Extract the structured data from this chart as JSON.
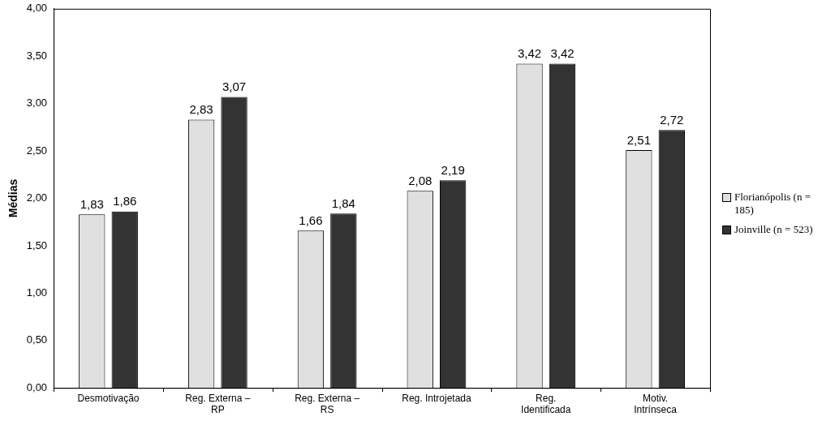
{
  "chart_data": {
    "type": "bar",
    "ylabel": "Médias",
    "categories": [
      "Desmotivação",
      "Reg. Externa – RP",
      "Reg. Externa – RS",
      "Reg. Introjetada",
      "Reg. Identificada",
      "Motiv. Intrínseca"
    ],
    "series": [
      {
        "name": "Florianópolis (n = 185)",
        "color": "#e0e0e0",
        "values": [
          1.83,
          2.83,
          1.66,
          2.08,
          3.42,
          2.51
        ],
        "value_labels": [
          "1,83",
          "2,83",
          "1,66",
          "2,08",
          "3,42",
          "2,51"
        ]
      },
      {
        "name": "Joinville (n = 523)",
        "color": "#333333",
        "values": [
          1.86,
          3.07,
          1.84,
          2.19,
          3.42,
          2.72
        ],
        "value_labels": [
          "1,86",
          "3,07",
          "1,84",
          "2,19",
          "3,42",
          "2,72"
        ]
      }
    ],
    "ylim": [
      0,
      4
    ],
    "yticks": [
      {
        "value": 0,
        "label": "0,00"
      },
      {
        "value": 0.5,
        "label": "0,50"
      },
      {
        "value": 1,
        "label": "1,00"
      },
      {
        "value": 1.5,
        "label": "1,50"
      },
      {
        "value": 2,
        "label": "2,00"
      },
      {
        "value": 2.5,
        "label": "2,50"
      },
      {
        "value": 3,
        "label": "3,00"
      },
      {
        "value": 3.5,
        "label": "3,50"
      },
      {
        "value": 4,
        "label": "4,00"
      }
    ],
    "grid": false,
    "legend": "right"
  }
}
